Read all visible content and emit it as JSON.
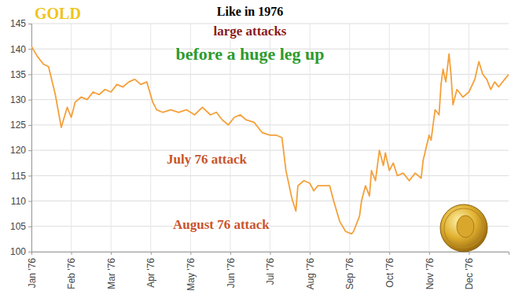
{
  "chart_data": {
    "type": "line",
    "title": "GOLD",
    "subtitle": "Like in 1976",
    "annotations": [
      "large attacks",
      "before a huge leg up",
      "July 76 attack",
      "August 76 attack"
    ],
    "color": "#f5a03a",
    "grid": true,
    "x": [
      0,
      0.15,
      0.3,
      0.43,
      0.6,
      0.75,
      0.9,
      1.0,
      1.1,
      1.25,
      1.4,
      1.55,
      1.7,
      1.85,
      2.0,
      2.15,
      2.3,
      2.45,
      2.6,
      2.75,
      2.9,
      3.05,
      3.15,
      3.3,
      3.5,
      3.7,
      3.9,
      4.1,
      4.3,
      4.5,
      4.65,
      4.8,
      4.95,
      5.1,
      5.25,
      5.4,
      5.6,
      5.8,
      6.0,
      6.15,
      6.3,
      6.4,
      6.55,
      6.65,
      6.7,
      6.85,
      7.0,
      7.1,
      7.2,
      7.5,
      7.6,
      7.75,
      7.9,
      8.05,
      8.1,
      8.25,
      8.3,
      8.4,
      8.5,
      8.55,
      8.65,
      8.75,
      8.85,
      8.9,
      9.0,
      9.1,
      9.2,
      9.35,
      9.5,
      9.65,
      9.8,
      9.85,
      10.0,
      10.05,
      10.15,
      10.25,
      10.3,
      10.35,
      10.42,
      10.5,
      10.55,
      10.6,
      10.7,
      10.85,
      11.0,
      11.15,
      11.25,
      11.35,
      11.45,
      11.55,
      11.65,
      11.75,
      11.9,
      12.0
    ],
    "values": [
      140.5,
      138.5,
      137,
      136.5,
      131,
      124.5,
      128.5,
      126.5,
      129.5,
      130.5,
      130,
      131.5,
      131,
      132,
      131.5,
      133,
      132.5,
      133.5,
      134,
      133,
      133.5,
      129.5,
      128,
      127.5,
      128,
      127.5,
      128,
      127,
      128.5,
      127,
      127.5,
      126,
      125,
      126.5,
      127,
      126,
      125.5,
      123.5,
      123,
      123,
      122.5,
      116,
      110.5,
      108,
      113,
      114,
      113.5,
      112,
      113,
      113,
      110,
      106,
      104,
      103.5,
      104,
      107,
      110,
      113,
      111,
      116,
      114,
      120,
      117,
      119.5,
      116,
      117.5,
      115,
      115.5,
      114,
      115.5,
      114.5,
      118,
      123,
      122,
      128,
      127,
      133,
      136,
      133.5,
      139,
      135,
      129,
      132,
      130.5,
      131.5,
      134,
      137.5,
      135,
      134,
      132,
      133.5,
      132.5,
      134,
      135
    ],
    "xlim": [
      0,
      12
    ],
    "xticks": [
      {
        "value": 0,
        "label": "Jan '76"
      },
      {
        "value": 1,
        "label": "Feb '76"
      },
      {
        "value": 2,
        "label": "Mar '76"
      },
      {
        "value": 3,
        "label": "Apr '76"
      },
      {
        "value": 4,
        "label": "May '76"
      },
      {
        "value": 5,
        "label": "Jun '76"
      },
      {
        "value": 6,
        "label": "Jul '76"
      },
      {
        "value": 7,
        "label": "Aug '76"
      },
      {
        "value": 8,
        "label": "Sep '76"
      },
      {
        "value": 9,
        "label": "Oct '76"
      },
      {
        "value": 10,
        "label": "Nov '76"
      },
      {
        "value": 11,
        "label": "Dec '76"
      }
    ],
    "ylim": [
      100,
      145
    ],
    "yticks": [
      100,
      105,
      110,
      115,
      120,
      125,
      130,
      135,
      140,
      145
    ]
  }
}
